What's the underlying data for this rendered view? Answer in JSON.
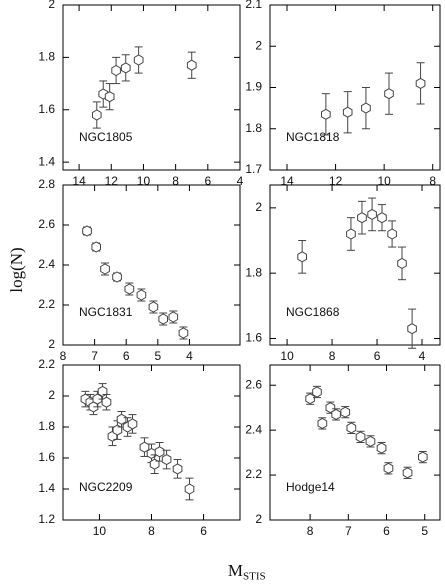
{
  "ylabel": "log(N)",
  "xlabel": "M",
  "xlabel_sub": "STIS",
  "chart_data": [
    {
      "type": "scatter",
      "label": "NGC1805",
      "color": "#444444",
      "x": [
        12.9,
        12.5,
        12.1,
        11.7,
        11.1,
        10.3,
        7.0
      ],
      "values": [
        1.58,
        1.66,
        1.65,
        1.75,
        1.76,
        1.79,
        1.77
      ],
      "errors": [
        0.05,
        0.05,
        0.05,
        0.05,
        0.05,
        0.05,
        0.05
      ],
      "xlim": [
        15,
        4
      ],
      "ylim": [
        1.37,
        2.0
      ],
      "xticks": [
        14,
        12,
        10,
        8,
        6,
        4
      ],
      "yticks": [
        1.4,
        1.6,
        1.8,
        2
      ]
    },
    {
      "type": "scatter",
      "label": "NGC1818",
      "color": "#444444",
      "x": [
        12.4,
        11.5,
        10.75,
        9.8,
        8.5
      ],
      "values": [
        1.835,
        1.84,
        1.85,
        1.885,
        1.91
      ],
      "errors": [
        0.05,
        0.05,
        0.05,
        0.05,
        0.05
      ],
      "xlim": [
        14.7,
        7.7
      ],
      "ylim": [
        1.7,
        2.1
      ],
      "xticks": [
        14,
        12,
        10,
        8
      ],
      "yticks": [
        1.7,
        1.8,
        1.9,
        2,
        2.1
      ]
    },
    {
      "type": "scatter",
      "label": "NGC1831",
      "color": "#444444",
      "x": [
        7.24,
        6.95,
        6.67,
        6.29,
        5.9,
        5.52,
        5.14,
        4.83,
        4.51,
        4.19
      ],
      "values": [
        2.57,
        2.49,
        2.38,
        2.34,
        2.28,
        2.25,
        2.19,
        2.13,
        2.14,
        2.06
      ],
      "errors": [
        0.02,
        0.02,
        0.03,
        0.02,
        0.03,
        0.03,
        0.03,
        0.03,
        0.03,
        0.03
      ],
      "xlim": [
        8,
        2.4
      ],
      "ylim": [
        2,
        2.8
      ],
      "xticks": [
        8,
        7,
        6,
        5,
        4
      ],
      "yticks": [
        2,
        2.2,
        2.4,
        2.6,
        2.8
      ]
    },
    {
      "type": "scatter",
      "label": "NGC1868",
      "color": "#444444",
      "x": [
        9.33,
        7.16,
        6.67,
        6.22,
        5.78,
        5.33,
        4.89,
        4.44
      ],
      "values": [
        1.85,
        1.92,
        1.97,
        1.98,
        1.97,
        1.92,
        1.83,
        1.63
      ],
      "errors": [
        0.05,
        0.05,
        0.05,
        0.05,
        0.04,
        0.04,
        0.05,
        0.06
      ],
      "xlim": [
        10.76,
        3.2
      ],
      "ylim": [
        1.58,
        2.07
      ],
      "xticks": [
        10,
        8,
        6,
        4
      ],
      "yticks": [
        1.6,
        1.8,
        2
      ]
    },
    {
      "type": "scatter",
      "label": "NGC2209",
      "color": "#444444",
      "x": [
        10.54,
        10.35,
        10.23,
        10.08,
        9.88,
        9.73,
        9.5,
        9.31,
        9.15,
        8.92,
        8.73,
        8.27,
        8.0,
        7.88,
        7.69,
        7.42,
        7.0,
        6.54
      ],
      "values": [
        1.98,
        1.96,
        1.93,
        1.98,
        2.03,
        1.96,
        1.74,
        1.78,
        1.85,
        1.8,
        1.82,
        1.67,
        1.63,
        1.56,
        1.64,
        1.59,
        1.53,
        1.4
      ],
      "errors": [
        0.05,
        0.05,
        0.05,
        0.05,
        0.05,
        0.05,
        0.06,
        0.06,
        0.05,
        0.06,
        0.06,
        0.06,
        0.06,
        0.06,
        0.06,
        0.06,
        0.06,
        0.07
      ],
      "xlim": [
        11.4,
        4.6
      ],
      "ylim": [
        1.2,
        2.2
      ],
      "xticks": [
        10,
        8,
        6
      ],
      "yticks": [
        1.2,
        1.4,
        1.6,
        1.8,
        2,
        2.2
      ]
    },
    {
      "type": "scatter",
      "label": "Hodge14",
      "color": "#444444",
      "x": [
        8.0,
        7.82,
        7.68,
        7.47,
        7.32,
        7.08,
        6.92,
        6.68,
        6.42,
        6.13,
        5.95,
        5.45,
        5.05
      ],
      "values": [
        2.54,
        2.57,
        2.43,
        2.5,
        2.47,
        2.48,
        2.41,
        2.37,
        2.35,
        2.32,
        2.23,
        2.21,
        2.28
      ],
      "errors": [
        0.025,
        0.025,
        0.025,
        0.025,
        0.025,
        0.025,
        0.025,
        0.025,
        0.025,
        0.025,
        0.025,
        0.025,
        0.025
      ],
      "xlim": [
        9.05,
        4.6
      ],
      "ylim": [
        2,
        2.69
      ],
      "xticks": [
        8,
        7,
        6,
        5
      ],
      "yticks": [
        2,
        2.2,
        2.4,
        2.6
      ]
    }
  ]
}
